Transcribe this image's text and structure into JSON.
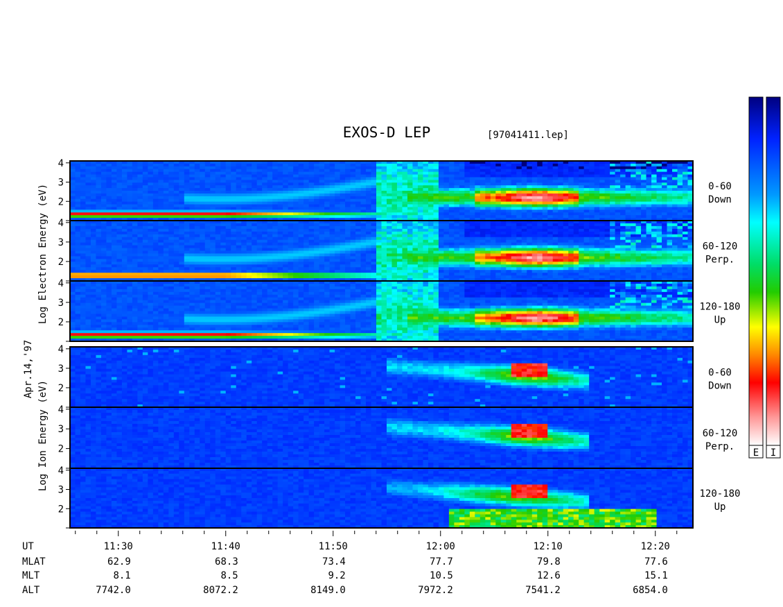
{
  "header": {
    "title": "EXOS-D LEP",
    "file_label": "[97041411.lep]"
  },
  "left_labels": {
    "electron_axis": "Log  Electron  Energy (eV)",
    "date": "Apr.14,'97",
    "ion_axis": "Log  Ion  Energy (eV)"
  },
  "colorbar": {
    "electron_box": "E",
    "ion_box": "I",
    "stops": [
      "#000099",
      "#0033ff",
      "#00ffff",
      "#00cc00",
      "#ffff00",
      "#ff0000",
      "#ffffff"
    ]
  },
  "chart_data": {
    "type": "heatmap",
    "title": "EXOS-D LEP",
    "x": {
      "ticks": [
        "11:30",
        "11:40",
        "11:50",
        "12:00",
        "12:10",
        "12:20"
      ],
      "tick_minutes": [
        690,
        700,
        710,
        720,
        730,
        740
      ],
      "start_minute": 685.5,
      "end_minute": 743.5
    },
    "panels": [
      {
        "species": "Electron",
        "pitch": [
          "0-60",
          "Down"
        ],
        "y_ticks": [
          "4",
          "3",
          "2"
        ],
        "y_tick_values": [
          4,
          3,
          2
        ],
        "ylim": [
          1,
          4.1
        ]
      },
      {
        "species": "Electron",
        "pitch": [
          "60-120",
          "Perp."
        ],
        "y_ticks": [
          "4",
          "3",
          "2"
        ],
        "y_tick_values": [
          4,
          3,
          2
        ],
        "ylim": [
          1,
          4.1
        ]
      },
      {
        "species": "Electron",
        "pitch": [
          "120-180",
          "Up"
        ],
        "y_ticks": [
          "4",
          "3",
          "2"
        ],
        "y_tick_values": [
          4,
          3,
          2
        ],
        "ylim": [
          1,
          4.1
        ]
      },
      {
        "species": "Ion",
        "pitch": [
          "0-60",
          "Down"
        ],
        "y_ticks": [
          "4",
          "3",
          "2"
        ],
        "y_tick_values": [
          4,
          3,
          2
        ],
        "ylim": [
          1,
          4.1
        ]
      },
      {
        "species": "Ion",
        "pitch": [
          "60-120",
          "Perp."
        ],
        "y_ticks": [
          "4",
          "3",
          "2"
        ],
        "y_tick_values": [
          4,
          3,
          2
        ],
        "ylim": [
          1,
          4.1
        ]
      },
      {
        "species": "Ion",
        "pitch": [
          "120-180",
          "Up"
        ],
        "y_ticks": [
          "4",
          "3",
          "2"
        ],
        "y_tick_values": [
          4,
          3,
          2
        ],
        "ylim": [
          1,
          4.1
        ]
      }
    ],
    "ephemeris": {
      "rows": [
        {
          "label": "UT",
          "values": []
        },
        {
          "label": "MLAT",
          "values": [
            "62.9",
            "68.3",
            "73.4",
            "77.7",
            "79.8",
            "77.6"
          ]
        },
        {
          "label": "MLT",
          "values": [
            "8.1",
            "8.5",
            "9.2",
            "10.5",
            "12.6",
            "15.1"
          ]
        },
        {
          "label": "ALT",
          "values": [
            "7742.0",
            "8072.2",
            "8149.0",
            "7972.2",
            "7541.2",
            "6854.0"
          ]
        }
      ]
    }
  }
}
